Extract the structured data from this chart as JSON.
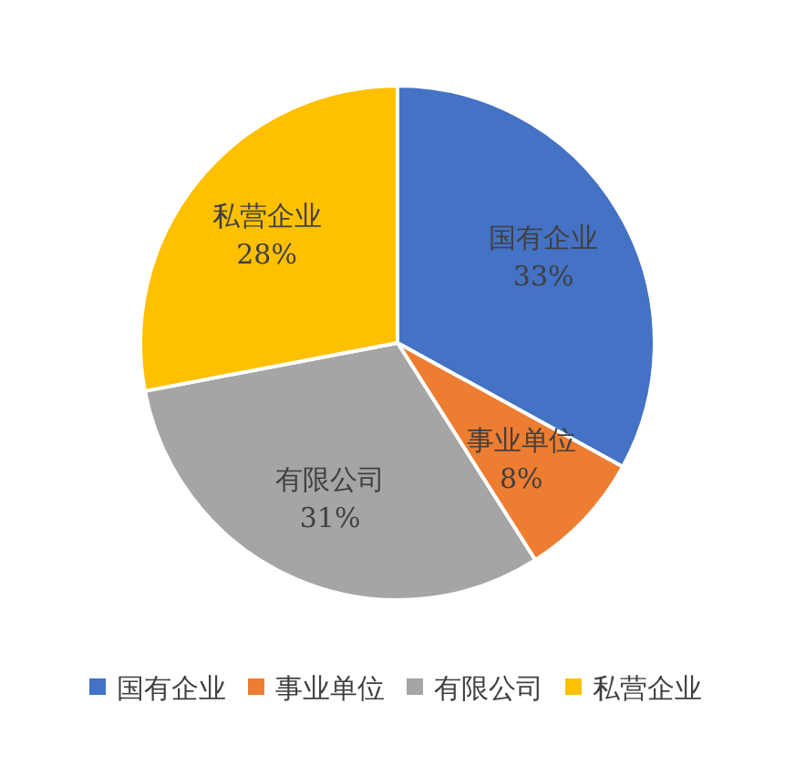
{
  "chart_data": {
    "type": "pie",
    "categories": [
      "国有企业",
      "事业单位",
      "有限公司",
      "私营企业"
    ],
    "values": [
      33,
      8,
      31,
      28
    ],
    "colors": [
      "#4472c4",
      "#ed7d31",
      "#a5a5a5",
      "#ffc000"
    ],
    "value_labels": [
      "33%",
      "8%",
      "31%",
      "28%"
    ],
    "legend": "bottom"
  }
}
